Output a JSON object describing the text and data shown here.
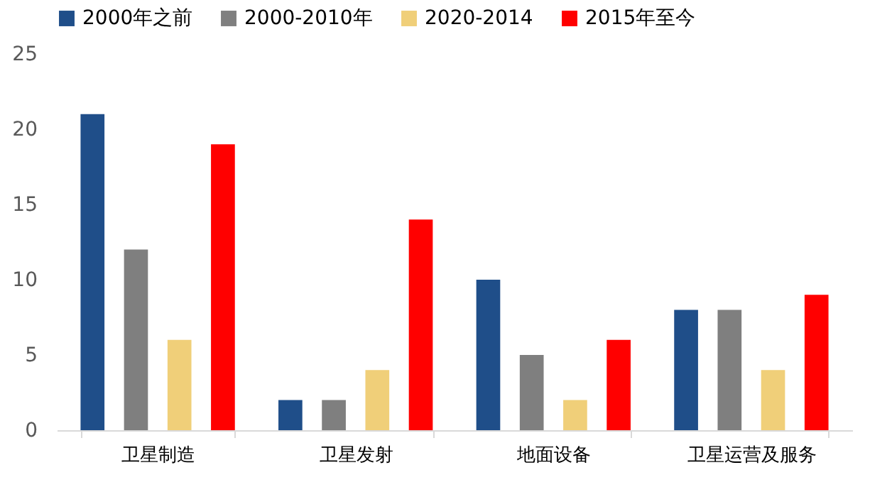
{
  "chart_data": {
    "type": "bar",
    "categories": [
      "卫星制造",
      "卫星发射",
      "地面设备",
      "卫星运营及服务"
    ],
    "series": [
      {
        "name": "2000年之前",
        "color": "#1f4e89",
        "values": [
          21,
          2,
          10,
          8
        ]
      },
      {
        "name": "2000-2010年",
        "color": "#7f7f7f",
        "values": [
          12,
          2,
          5,
          8
        ]
      },
      {
        "name": "2020-2014",
        "color": "#f0cf79",
        "values": [
          6,
          4,
          2,
          4
        ]
      },
      {
        "name": "2015年至今",
        "color": "#ff0000",
        "values": [
          19,
          14,
          6,
          9
        ]
      }
    ],
    "ylim": [
      0,
      25
    ],
    "yticks": [
      0,
      5,
      10,
      15,
      20,
      25
    ],
    "grid": false,
    "legend": "top"
  }
}
